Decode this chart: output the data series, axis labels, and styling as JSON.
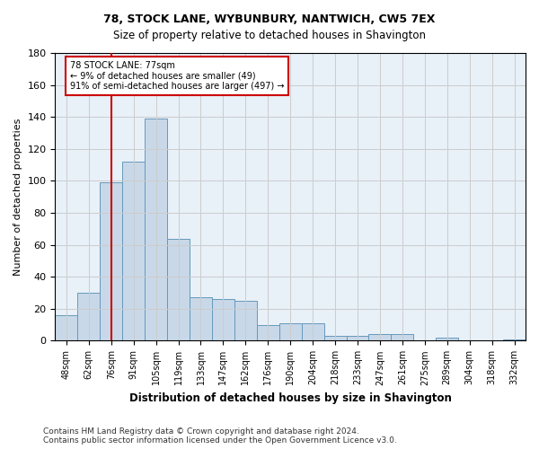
{
  "title1": "78, STOCK LANE, WYBUNBURY, NANTWICH, CW5 7EX",
  "title2": "Size of property relative to detached houses in Shavington",
  "xlabel": "Distribution of detached houses by size in Shavington",
  "ylabel": "Number of detached properties",
  "categories": [
    "48sqm",
    "62sqm",
    "76sqm",
    "91sqm",
    "105sqm",
    "119sqm",
    "133sqm",
    "147sqm",
    "162sqm",
    "176sqm",
    "190sqm",
    "204sqm",
    "218sqm",
    "233sqm",
    "247sqm",
    "261sqm",
    "275sqm",
    "289sqm",
    "304sqm",
    "318sqm",
    "332sqm"
  ],
  "values": [
    16,
    30,
    99,
    112,
    139,
    64,
    27,
    26,
    25,
    10,
    11,
    11,
    3,
    3,
    4,
    4,
    0,
    2,
    0,
    0,
    1
  ],
  "bar_color": "#c8d8e8",
  "bar_edge_color": "#6699bb",
  "vline_x": 2,
  "vline_color": "#cc0000",
  "annotation_text": "78 STOCK LANE: 77sqm\n← 9% of detached houses are smaller (49)\n91% of semi-detached houses are larger (497) →",
  "annotation_box_color": "#ffffff",
  "annotation_box_edge": "#cc0000",
  "ylim": [
    0,
    180
  ],
  "yticks": [
    0,
    20,
    40,
    60,
    80,
    100,
    120,
    140,
    160,
    180
  ],
  "grid_color": "#cccccc",
  "bg_color": "#e8f0f8",
  "footnote1": "Contains HM Land Registry data © Crown copyright and database right 2024.",
  "footnote2": "Contains public sector information licensed under the Open Government Licence v3.0."
}
